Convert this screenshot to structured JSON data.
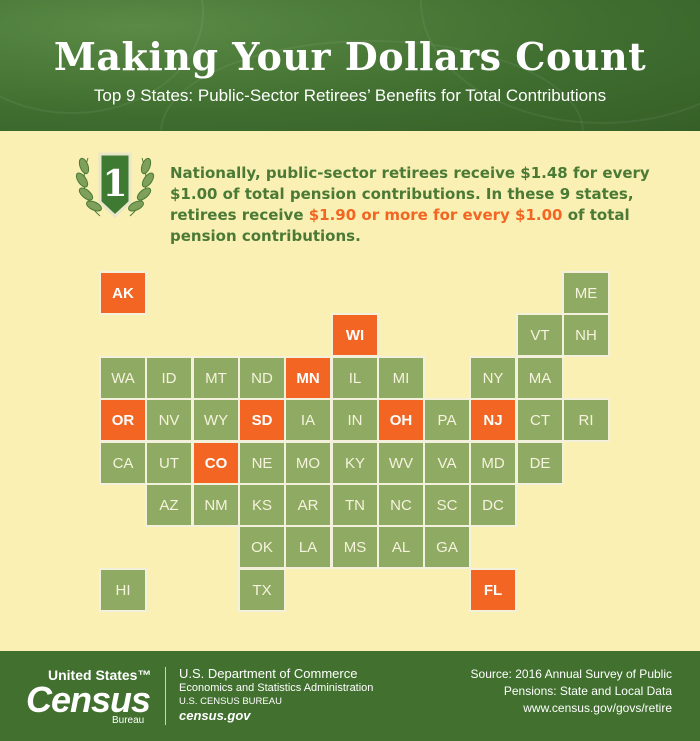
{
  "header": {
    "title": "Making Your Dollars Count",
    "subtitle": "Top 9 States: Public-Sector Retirees’ Benefits for Total Contributions"
  },
  "badge": {
    "number": "1"
  },
  "statement": {
    "part1": "Nationally, public-sector retirees receive $1.48 for every $1.00 of total pension contributions. In these 9 states, retirees receive ",
    "highlight": "$1.90 or more for every $1.00",
    "part2": " of total pension contributions."
  },
  "colors": {
    "header_green": "#3f6d2f",
    "tile_green": "#8faa62",
    "highlight_orange": "#f26522",
    "background": "#faf0b3",
    "statement_green": "#4a7a36"
  },
  "states": [
    {
      "abbr": "AK",
      "col": 0,
      "row": 0,
      "top": true
    },
    {
      "abbr": "ME",
      "col": 10,
      "row": 0,
      "top": false
    },
    {
      "abbr": "WI",
      "col": 5,
      "row": 1,
      "top": true
    },
    {
      "abbr": "VT",
      "col": 9,
      "row": 1,
      "top": false
    },
    {
      "abbr": "NH",
      "col": 10,
      "row": 1,
      "top": false
    },
    {
      "abbr": "WA",
      "col": 0,
      "row": 2,
      "top": false
    },
    {
      "abbr": "ID",
      "col": 1,
      "row": 2,
      "top": false
    },
    {
      "abbr": "MT",
      "col": 2,
      "row": 2,
      "top": false
    },
    {
      "abbr": "ND",
      "col": 3,
      "row": 2,
      "top": false
    },
    {
      "abbr": "MN",
      "col": 4,
      "row": 2,
      "top": true
    },
    {
      "abbr": "IL",
      "col": 5,
      "row": 2,
      "top": false
    },
    {
      "abbr": "MI",
      "col": 6,
      "row": 2,
      "top": false
    },
    {
      "abbr": "NY",
      "col": 8,
      "row": 2,
      "top": false
    },
    {
      "abbr": "MA",
      "col": 9,
      "row": 2,
      "top": false
    },
    {
      "abbr": "OR",
      "col": 0,
      "row": 3,
      "top": true
    },
    {
      "abbr": "NV",
      "col": 1,
      "row": 3,
      "top": false
    },
    {
      "abbr": "WY",
      "col": 2,
      "row": 3,
      "top": false
    },
    {
      "abbr": "SD",
      "col": 3,
      "row": 3,
      "top": true
    },
    {
      "abbr": "IA",
      "col": 4,
      "row": 3,
      "top": false
    },
    {
      "abbr": "IN",
      "col": 5,
      "row": 3,
      "top": false
    },
    {
      "abbr": "OH",
      "col": 6,
      "row": 3,
      "top": true
    },
    {
      "abbr": "PA",
      "col": 7,
      "row": 3,
      "top": false
    },
    {
      "abbr": "NJ",
      "col": 8,
      "row": 3,
      "top": true
    },
    {
      "abbr": "CT",
      "col": 9,
      "row": 3,
      "top": false
    },
    {
      "abbr": "RI",
      "col": 10,
      "row": 3,
      "top": false
    },
    {
      "abbr": "CA",
      "col": 0,
      "row": 4,
      "top": false
    },
    {
      "abbr": "UT",
      "col": 1,
      "row": 4,
      "top": false
    },
    {
      "abbr": "CO",
      "col": 2,
      "row": 4,
      "top": true
    },
    {
      "abbr": "NE",
      "col": 3,
      "row": 4,
      "top": false
    },
    {
      "abbr": "MO",
      "col": 4,
      "row": 4,
      "top": false
    },
    {
      "abbr": "KY",
      "col": 5,
      "row": 4,
      "top": false
    },
    {
      "abbr": "WV",
      "col": 6,
      "row": 4,
      "top": false
    },
    {
      "abbr": "VA",
      "col": 7,
      "row": 4,
      "top": false
    },
    {
      "abbr": "MD",
      "col": 8,
      "row": 4,
      "top": false
    },
    {
      "abbr": "DE",
      "col": 9,
      "row": 4,
      "top": false
    },
    {
      "abbr": "AZ",
      "col": 1,
      "row": 5,
      "top": false
    },
    {
      "abbr": "NM",
      "col": 2,
      "row": 5,
      "top": false
    },
    {
      "abbr": "KS",
      "col": 3,
      "row": 5,
      "top": false
    },
    {
      "abbr": "AR",
      "col": 4,
      "row": 5,
      "top": false
    },
    {
      "abbr": "TN",
      "col": 5,
      "row": 5,
      "top": false
    },
    {
      "abbr": "NC",
      "col": 6,
      "row": 5,
      "top": false
    },
    {
      "abbr": "SC",
      "col": 7,
      "row": 5,
      "top": false
    },
    {
      "abbr": "DC",
      "col": 8,
      "row": 5,
      "top": false
    },
    {
      "abbr": "OK",
      "col": 3,
      "row": 6,
      "top": false
    },
    {
      "abbr": "LA",
      "col": 4,
      "row": 6,
      "top": false
    },
    {
      "abbr": "MS",
      "col": 5,
      "row": 6,
      "top": false
    },
    {
      "abbr": "AL",
      "col": 6,
      "row": 6,
      "top": false
    },
    {
      "abbr": "GA",
      "col": 7,
      "row": 6,
      "top": false
    },
    {
      "abbr": "HI",
      "col": 0,
      "row": 7,
      "top": false
    },
    {
      "abbr": "TX",
      "col": 3,
      "row": 7,
      "top": false
    },
    {
      "abbr": "FL",
      "col": 8,
      "row": 7,
      "top": true
    }
  ],
  "footer": {
    "logo": {
      "line1": "United States™",
      "line2": "Census",
      "line3": "Bureau"
    },
    "dept": {
      "line1": "U.S. Department of Commerce",
      "line2": "Economics and Statistics Administration",
      "line3": "U.S. CENSUS BUREAU",
      "line4": "census.gov"
    },
    "source": {
      "line1": "Source: 2016 Annual Survey of Public",
      "line2": "Pensions: State and Local Data",
      "line3": "www.census.gov/govs/retire"
    }
  }
}
